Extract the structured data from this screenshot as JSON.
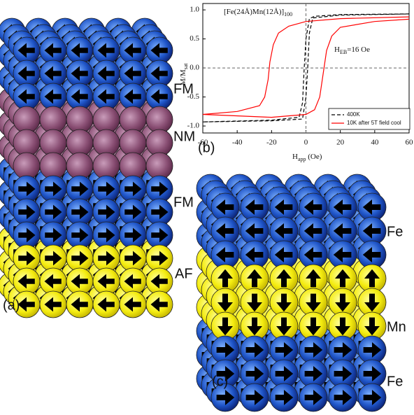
{
  "diagram_a": {
    "panel": "(a)",
    "layers": [
      "FM",
      "NM",
      "FM",
      "AF"
    ]
  },
  "diagram_c": {
    "panel": "(c)",
    "layers": [
      "Fe",
      "Mn",
      "Fe"
    ]
  },
  "chart_data": {
    "type": "line",
    "panel": "(b)",
    "title": {
      "text": "[Fe(24Å)Mn(12Å)]",
      "subscript": "100"
    },
    "x_label": {
      "text": "H",
      "subscript": "app",
      "unit": " (Oe)"
    },
    "y_label": {
      "text": "M/M",
      "subscript": "sat"
    },
    "annotation": {
      "text": "H",
      "subscript": "EB",
      "rest": "=16 Oe"
    },
    "xlim": [
      -60,
      60
    ],
    "xticks": [
      -60,
      -40,
      -20,
      0,
      20,
      40,
      60
    ],
    "ylim": [
      -1.12,
      1.11
    ],
    "yticks": [
      {
        "value": -1,
        "label": "-1.0"
      },
      {
        "value": -0.5,
        "label": "-0.5"
      },
      {
        "value": 0,
        "label": "0.0"
      },
      {
        "value": 0.5,
        "label": "0.5"
      },
      {
        "value": 1,
        "label": "1.0"
      }
    ],
    "legend": "lower right",
    "series": [
      {
        "name": "400K",
        "color": "#000000",
        "dashed": true,
        "x": [
          60,
          20,
          5,
          2,
          0,
          -1,
          -2,
          -4,
          -20,
          -60,
          -20,
          -2,
          0,
          1,
          2,
          4,
          20,
          60
        ],
        "values": [
          0.93,
          0.92,
          0.89,
          0.85,
          0.5,
          0,
          -0.6,
          -0.85,
          -0.9,
          -0.93,
          -0.91,
          -0.88,
          -0.5,
          0,
          0.6,
          0.86,
          0.91,
          0.93
        ]
      },
      {
        "name": "10K after 5T field cool",
        "color": "#ff0000",
        "dashed": false,
        "x": [
          60,
          20,
          0,
          -10,
          -16,
          -19,
          -21,
          -22,
          -24,
          -27,
          -40,
          -60,
          -20,
          0,
          5,
          8,
          10,
          12,
          15,
          20,
          40,
          60
        ],
        "values": [
          0.88,
          0.85,
          0.8,
          0.72,
          0.6,
          0.4,
          0.1,
          -0.2,
          -0.5,
          -0.65,
          -0.75,
          -0.8,
          -0.85,
          -0.8,
          -0.72,
          -0.5,
          -0.1,
          0.3,
          0.55,
          0.7,
          0.8,
          0.84
        ]
      }
    ]
  }
}
